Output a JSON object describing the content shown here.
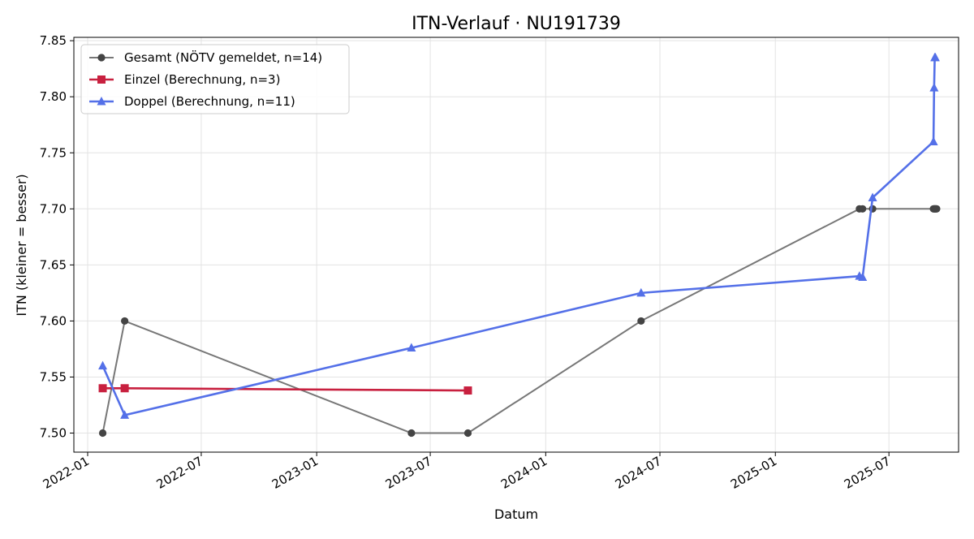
{
  "chart_data": {
    "type": "line",
    "title": "ITN-Verlauf · NU191739",
    "xlabel": "Datum",
    "ylabel": "ITN  (kleiner = besser)",
    "xlim": [
      "2021-12-10",
      "2025-10-20"
    ],
    "ylim": [
      7.483,
      7.853
    ],
    "grid": true,
    "legend_position": "top-left",
    "x_ticks": [
      "2022-01-01",
      "2022-07-01",
      "2023-01-01",
      "2023-07-01",
      "2024-01-01",
      "2024-07-01",
      "2025-01-01",
      "2025-07-01"
    ],
    "x_tick_labels": [
      "2022-01",
      "2022-07",
      "2023-01",
      "2023-07",
      "2024-01",
      "2024-07",
      "2025-01",
      "2025-07"
    ],
    "y_ticks": [
      7.5,
      7.55,
      7.6,
      7.65,
      7.7,
      7.75,
      7.8,
      7.85
    ],
    "y_tick_labels": [
      "7.50",
      "7.55",
      "7.60",
      "7.65",
      "7.70",
      "7.75",
      "7.80",
      "7.85"
    ],
    "series": [
      {
        "name": "Gesamt (NÖTV gemeldet, n=14)",
        "color": "#777777",
        "marker_color": "#444444",
        "marker": "circle",
        "points": [
          [
            "2022-01-25",
            7.5
          ],
          [
            "2022-03-01",
            7.6
          ],
          [
            "2023-06-01",
            7.5
          ],
          [
            "2023-08-30",
            7.5
          ],
          [
            "2024-06-01",
            7.6
          ],
          [
            "2025-05-15",
            7.7
          ],
          [
            "2025-05-20",
            7.7
          ],
          [
            "2025-06-05",
            7.7
          ],
          [
            "2025-09-10",
            7.7
          ],
          [
            "2025-09-11",
            7.7
          ],
          [
            "2025-09-12",
            7.7
          ],
          [
            "2025-09-13",
            7.7
          ],
          [
            "2025-09-14",
            7.7
          ],
          [
            "2025-09-15",
            7.7
          ]
        ]
      },
      {
        "name": "Einzel (Berechnung, n=3)",
        "color": "#c8203f",
        "marker": "square",
        "points": [
          [
            "2022-01-25",
            7.54
          ],
          [
            "2022-03-01",
            7.54
          ],
          [
            "2023-08-30",
            7.538
          ]
        ]
      },
      {
        "name": "Doppel (Berechnung, n=11)",
        "color": "#5470e8",
        "marker": "triangle",
        "points": [
          [
            "2022-01-25",
            7.56
          ],
          [
            "2022-03-01",
            7.516
          ],
          [
            "2023-06-01",
            7.576
          ],
          [
            "2024-06-01",
            7.625
          ],
          [
            "2025-05-15",
            7.64
          ],
          [
            "2025-05-20",
            7.639
          ],
          [
            "2025-06-05",
            7.71
          ],
          [
            "2025-09-10",
            7.76
          ],
          [
            "2025-09-11",
            7.808
          ],
          [
            "2025-09-12",
            7.835
          ],
          [
            "2025-09-13",
            7.835
          ]
        ]
      }
    ]
  }
}
